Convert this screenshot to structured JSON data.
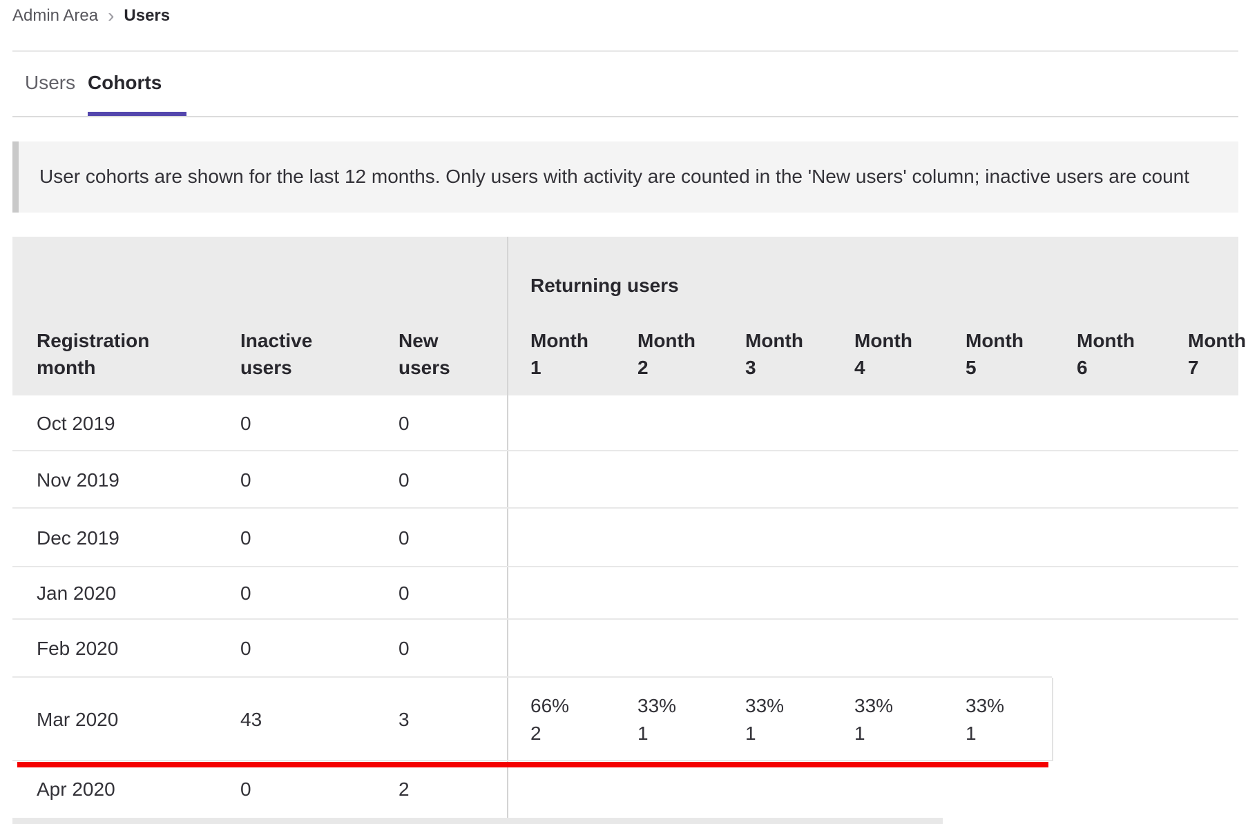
{
  "breadcrumb": {
    "separator": "›",
    "items": [
      {
        "label": "Admin Area"
      },
      {
        "label": "Users",
        "current": true
      }
    ]
  },
  "tabs": {
    "users": "Users",
    "cohorts": "Cohorts",
    "active": "Cohorts"
  },
  "banner": {
    "text": "User cohorts are shown for the last 12 months. Only users with activity are counted in the 'New users' column; inactive users are count"
  },
  "table": {
    "columns": {
      "registration": "Registration month",
      "inactive": "Inactive users",
      "new": "New users"
    },
    "group_header": "Returning users",
    "month_columns": [
      "Month 1",
      "Month 2",
      "Month 3",
      "Month 4",
      "Month 5",
      "Month 6",
      "Month 7"
    ],
    "rows": [
      {
        "month": "Oct 2019",
        "inactive": "0",
        "new": "0",
        "returning": []
      },
      {
        "month": "Nov 2019",
        "inactive": "0",
        "new": "0",
        "returning": []
      },
      {
        "month": "Dec 2019",
        "inactive": "0",
        "new": "0",
        "returning": []
      },
      {
        "month": "Jan 2020",
        "inactive": "0",
        "new": "0",
        "returning": []
      },
      {
        "month": "Feb 2020",
        "inactive": "0",
        "new": "0",
        "returning": []
      },
      {
        "month": "Mar 2020",
        "inactive": "43",
        "new": "3",
        "returning": [
          {
            "percentage": "66%",
            "count": "2"
          },
          {
            "percentage": "33%",
            "count": "1"
          },
          {
            "percentage": "33%",
            "count": "1"
          },
          {
            "percentage": "33%",
            "count": "1"
          },
          {
            "percentage": "33%",
            "count": "1"
          }
        ]
      },
      {
        "month": "Apr 2020",
        "inactive": "0",
        "new": "2",
        "returning": []
      }
    ]
  },
  "annotation": {
    "type": "red-underline",
    "color": "#f40000"
  },
  "colors": {
    "tab_active_underline": "#5346ad",
    "banner_bg": "#f4f4f4",
    "table_header_bg": "#ebebeb",
    "annotation_red": "#f40000",
    "text_primary": "#333238",
    "text_muted": "#626168"
  }
}
